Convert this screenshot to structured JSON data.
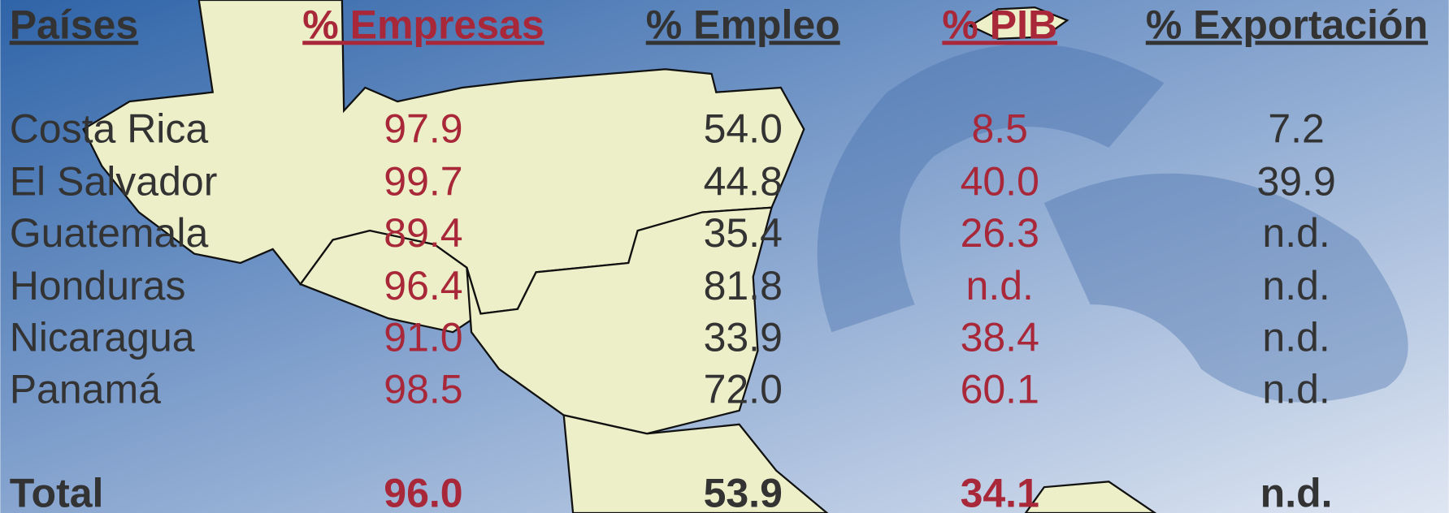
{
  "table": {
    "header": [
      "Países",
      "% Empresas",
      "% Empleo",
      "% PIB",
      "% Exportación"
    ],
    "rows": [
      [
        "Costa Rica",
        "97.9",
        "54.0",
        "8.5",
        "7.2"
      ],
      [
        "El Salvador",
        "99.7",
        "44.8",
        "40.0",
        "39.9"
      ],
      [
        "Guatemala",
        "89.4",
        "35.4",
        "26.3",
        "n.d."
      ],
      [
        "Honduras",
        "96.4",
        "81.8",
        "n.d.",
        "n.d."
      ],
      [
        "Nicaragua",
        "91.0",
        "33.9",
        "38.4",
        "n.d."
      ],
      [
        "Panamá",
        "98.5",
        "72.0",
        "60.1",
        "n.d."
      ]
    ],
    "total": [
      "Total",
      "96.0",
      "53.9",
      "34.1",
      "n.d."
    ]
  }
}
